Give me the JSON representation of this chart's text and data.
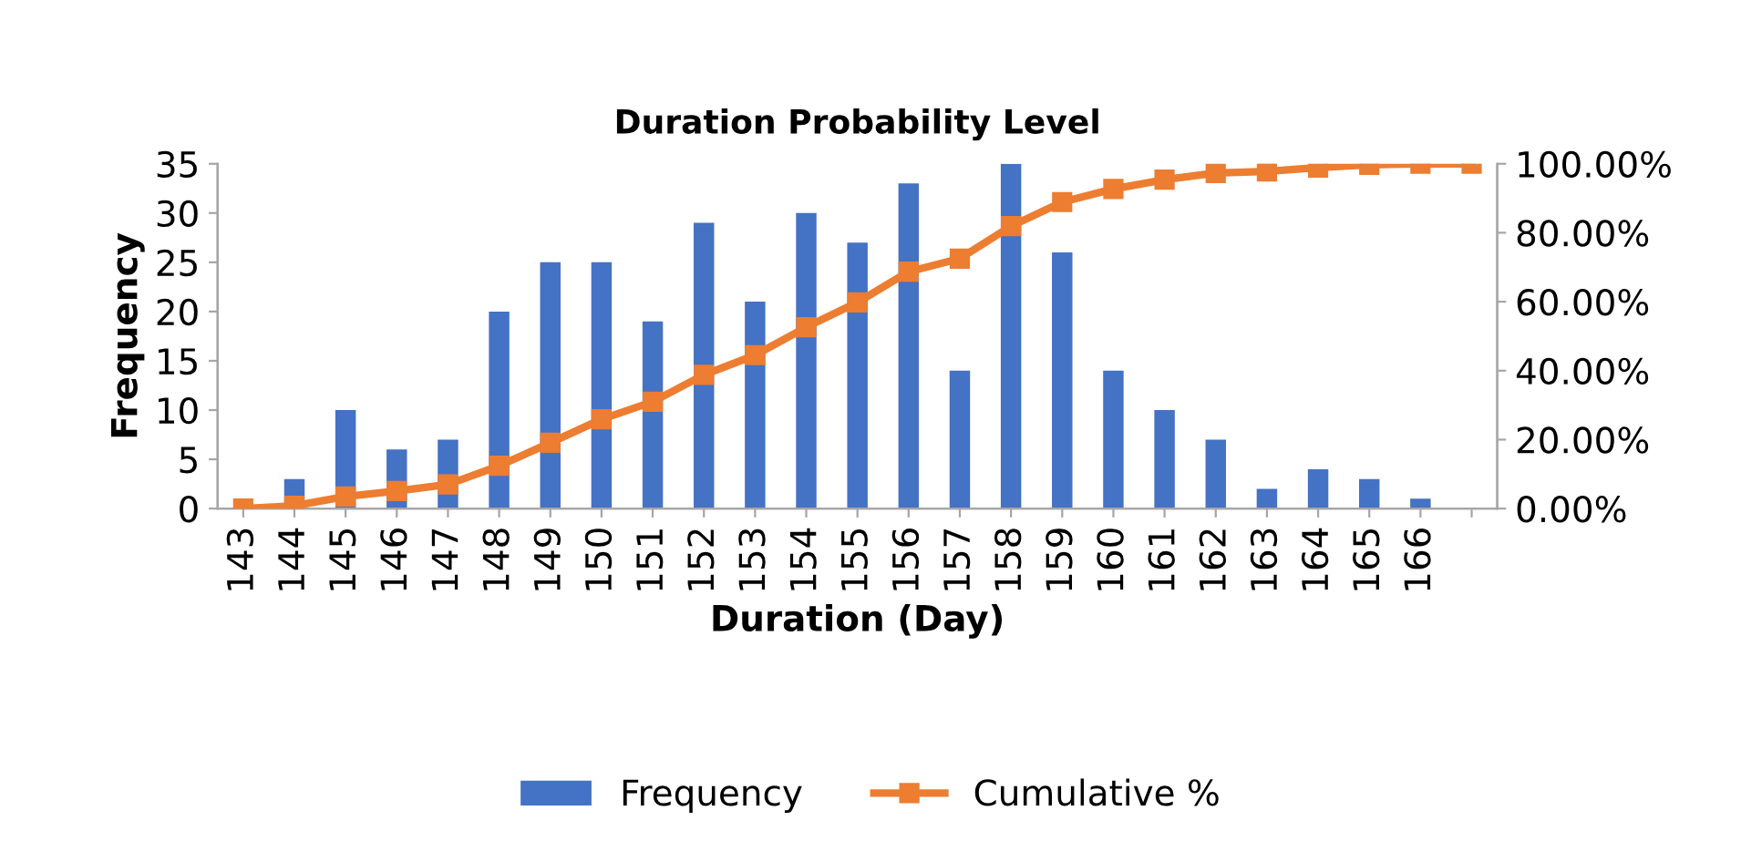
{
  "chart_data": {
    "type": "bar",
    "title": "Duration Probability Level",
    "xlabel": "Duration (Day)",
    "ylabel": "Frequency",
    "categories": [
      "143",
      "144",
      "145",
      "146",
      "147",
      "148",
      "149",
      "150",
      "151",
      "152",
      "153",
      "154",
      "155",
      "156",
      "157",
      "158",
      "159",
      "160",
      "161",
      "162",
      "163",
      "164",
      "165",
      "166",
      null
    ],
    "series": [
      {
        "name": "Frequency",
        "color": "#4472c4",
        "values": [
          0,
          3,
          10,
          6,
          7,
          20,
          25,
          25,
          19,
          29,
          21,
          30,
          27,
          33,
          14,
          35,
          26,
          14,
          10,
          7,
          2,
          4,
          3,
          1,
          null
        ]
      },
      {
        "name": "Cumulative %",
        "type": "line",
        "axis": "y2",
        "color": "#ed7d31",
        "marker": "square",
        "values": [
          0,
          0.8,
          3.5,
          5.1,
          7.0,
          12.4,
          19.1,
          25.9,
          31.0,
          38.8,
          44.5,
          52.6,
          59.8,
          68.7,
          72.5,
          81.9,
          88.9,
          92.7,
          95.4,
          97.3,
          97.8,
          98.9,
          99.7,
          100,
          100
        ]
      }
    ],
    "ylim": [
      0,
      35
    ],
    "yticks": [
      0,
      5,
      10,
      15,
      20,
      25,
      30,
      35
    ],
    "y2lim": [
      0,
      100
    ],
    "y2ticks": [
      {
        "value": 0,
        "label": "0.00%"
      },
      {
        "value": 20,
        "label": "20.00%"
      },
      {
        "value": 40,
        "label": "40.00%"
      },
      {
        "value": 60,
        "label": "60.00%"
      },
      {
        "value": 80,
        "label": "80.00%"
      },
      {
        "value": 100,
        "label": "100.00%"
      }
    ],
    "grid": false,
    "legend": "bottom"
  }
}
